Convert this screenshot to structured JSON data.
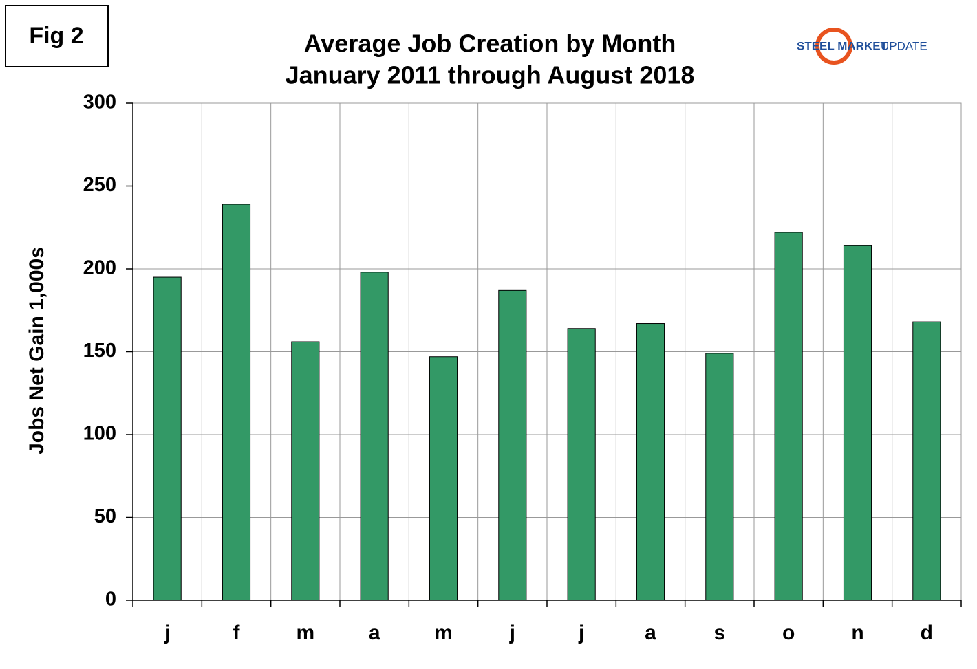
{
  "chart_data": {
    "type": "bar",
    "figure_label": "Fig 2",
    "title": "Average Job Creation by Month",
    "subtitle": "January 2011 through August 2018",
    "logo": [
      "STEEL MARKET",
      "UPDATE"
    ],
    "y_label": "Jobs Net Gain 1,000s",
    "categories": [
      "j",
      "f",
      "m",
      "a",
      "m",
      "j",
      "j",
      "a",
      "s",
      "o",
      "n",
      "d"
    ],
    "values": [
      195,
      239,
      156,
      198,
      147,
      187,
      164,
      167,
      149,
      222,
      214,
      168
    ],
    "color": "#339966",
    "ylim": [
      0,
      300
    ],
    "yticks": [
      0,
      50,
      100,
      150,
      200,
      250,
      300
    ],
    "grid": true
  }
}
